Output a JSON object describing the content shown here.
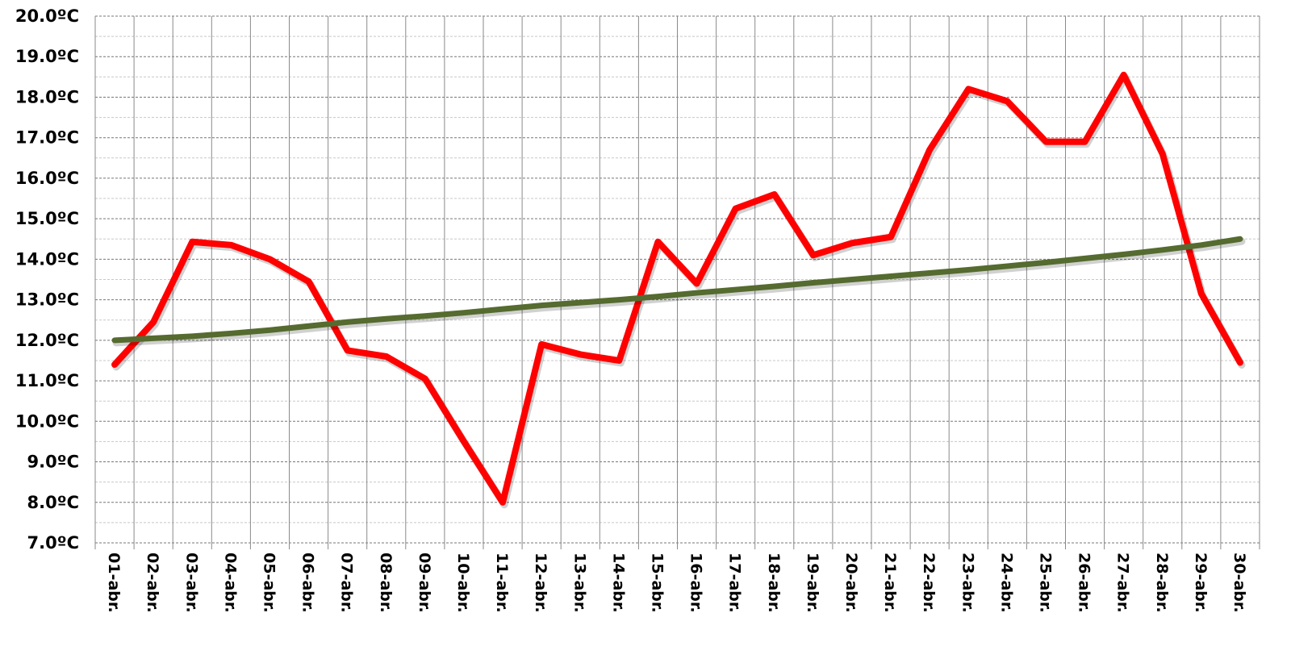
{
  "chart_data": {
    "type": "line",
    "title": "",
    "xlabel": "",
    "ylabel": "",
    "ylim": [
      7,
      20
    ],
    "y_tick_step": 1,
    "y_tick_labels": [
      "7.0ºC",
      "8.0ºC",
      "9.0ºC",
      "10.0ºC",
      "11.0ºC",
      "12.0ºC",
      "13.0ºC",
      "14.0ºC",
      "15.0ºC",
      "16.0ºC",
      "17.0ºC",
      "18.0ºC",
      "19.0ºC",
      "20.0ºC"
    ],
    "grid": true,
    "categories": [
      "01-abr.",
      "02-abr.",
      "03-abr.",
      "04-abr.",
      "05-abr.",
      "06-abr.",
      "07-abr.",
      "08-abr.",
      "09-abr.",
      "10-abr.",
      "11-abr.",
      "12-abr.",
      "13-abr.",
      "14-abr.",
      "15-abr.",
      "16-abr.",
      "17-abr.",
      "18-abr.",
      "19-abr.",
      "20-abr.",
      "21-abr.",
      "22-abr.",
      "23-abr.",
      "24-abr.",
      "25-abr.",
      "26-abr.",
      "27-abr.",
      "28-abr.",
      "29-abr.",
      "30-abr."
    ],
    "series": [
      {
        "color": "#ff0000",
        "values": [
          11.4,
          12.45,
          14.43,
          14.35,
          14.0,
          13.45,
          11.75,
          11.6,
          11.05,
          9.5,
          8.0,
          11.9,
          11.65,
          11.5,
          14.43,
          13.4,
          15.25,
          15.6,
          14.1,
          14.4,
          14.55,
          16.7,
          18.2,
          17.9,
          16.9,
          16.9,
          18.55,
          16.6,
          13.15,
          11.45
        ]
      },
      {
        "color": "#556b2f",
        "values": [
          12.0,
          12.05,
          12.1,
          12.17,
          12.25,
          12.35,
          12.45,
          12.53,
          12.6,
          12.68,
          12.77,
          12.86,
          12.93,
          13.0,
          13.08,
          13.17,
          13.25,
          13.33,
          13.42,
          13.5,
          13.58,
          13.66,
          13.74,
          13.83,
          13.92,
          14.02,
          14.12,
          14.23,
          14.35,
          14.5
        ]
      }
    ]
  }
}
